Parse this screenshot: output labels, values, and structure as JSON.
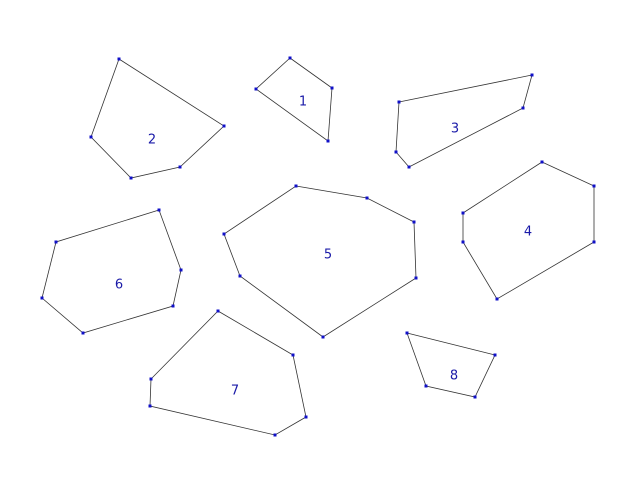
{
  "colors": {
    "background": "#ffffff",
    "edge": "#333333",
    "vertex": "#1010c8",
    "label": "#1a1aa8"
  },
  "polygons": [
    {
      "id": "1",
      "label": "1"
    },
    {
      "id": "2",
      "label": "2"
    },
    {
      "id": "3",
      "label": "3"
    },
    {
      "id": "4",
      "label": "4"
    },
    {
      "id": "5",
      "label": "5"
    },
    {
      "id": "6",
      "label": "6"
    },
    {
      "id": "7",
      "label": "7"
    },
    {
      "id": "8",
      "label": "8"
    }
  ]
}
